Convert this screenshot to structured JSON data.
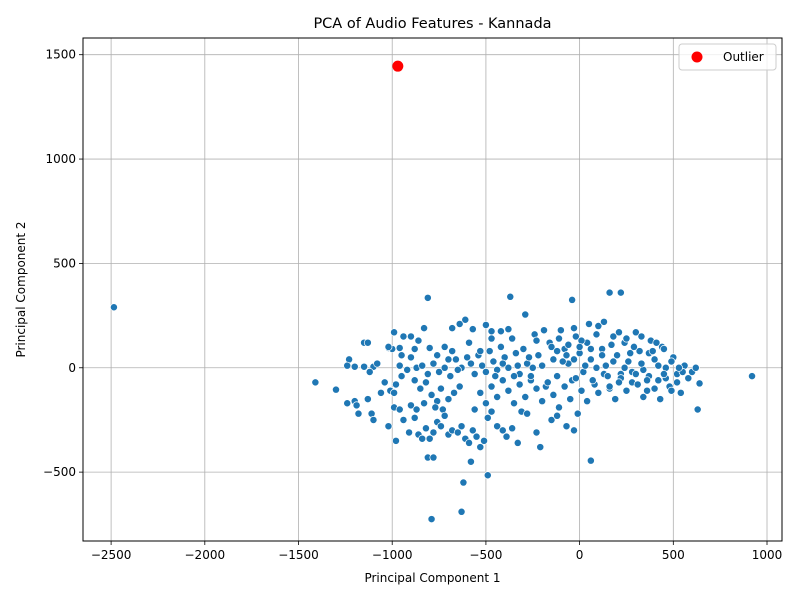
{
  "chart_data": {
    "type": "scatter",
    "title": "PCA of Audio Features - Kannada",
    "xlabel": "Principal Component 1",
    "ylabel": "Principal Component 2",
    "xlim": [
      -2650,
      1080
    ],
    "ylim": [
      -830,
      1580
    ],
    "xticks": [
      -2500,
      -2000,
      -1500,
      -1000,
      -500,
      0,
      500,
      1000
    ],
    "yticks": [
      -500,
      0,
      500,
      1000,
      1500
    ],
    "grid": true,
    "legend": {
      "placement": "top-right",
      "entries": [
        "Outlier"
      ]
    },
    "colors": {
      "points": "#1f77b4",
      "outlier": "#ff0000",
      "point_edge": "#ffffff"
    },
    "series": [
      {
        "role": "points",
        "points": [
          [
            -2485,
            290
          ],
          [
            -1410,
            -70
          ],
          [
            -1300,
            -105
          ],
          [
            920,
            -40
          ],
          [
            -810,
            335
          ],
          [
            -370,
            340
          ],
          [
            -290,
            255
          ],
          [
            -40,
            325
          ],
          [
            160,
            360
          ],
          [
            220,
            360
          ],
          [
            -640,
            210
          ],
          [
            -610,
            230
          ],
          [
            -570,
            185
          ],
          [
            -500,
            205
          ],
          [
            -470,
            175
          ],
          [
            -420,
            175
          ],
          [
            -380,
            185
          ],
          [
            -1230,
            40
          ],
          [
            -1240,
            10
          ],
          [
            -1200,
            5
          ],
          [
            -1150,
            120
          ],
          [
            -1130,
            120
          ],
          [
            -1100,
            5
          ],
          [
            -1080,
            20
          ],
          [
            -1020,
            95
          ],
          [
            -1000,
            90
          ],
          [
            -990,
            170
          ],
          [
            -960,
            95
          ],
          [
            -940,
            150
          ],
          [
            -900,
            150
          ],
          [
            -880,
            90
          ],
          [
            -860,
            130
          ],
          [
            -830,
            190
          ],
          [
            -800,
            95
          ],
          [
            -760,
            60
          ],
          [
            -720,
            100
          ],
          [
            -700,
            40
          ],
          [
            -680,
            190
          ],
          [
            -1040,
            -70
          ],
          [
            -1010,
            -110
          ],
          [
            -980,
            -80
          ],
          [
            -950,
            -40
          ],
          [
            -920,
            -10
          ],
          [
            -880,
            -60
          ],
          [
            -850,
            -100
          ],
          [
            -820,
            -70
          ],
          [
            -790,
            -130
          ],
          [
            -760,
            -160
          ],
          [
            -730,
            -200
          ],
          [
            -700,
            -150
          ],
          [
            -670,
            -120
          ],
          [
            -640,
            -90
          ],
          [
            -1240,
            -170
          ],
          [
            -1200,
            -160
          ],
          [
            -1180,
            -220
          ],
          [
            -1130,
            -150
          ],
          [
            -1110,
            -220
          ],
          [
            -1100,
            -250
          ],
          [
            -1020,
            -280
          ],
          [
            -990,
            -190
          ],
          [
            -980,
            -350
          ],
          [
            -960,
            -200
          ],
          [
            -940,
            -250
          ],
          [
            -900,
            -180
          ],
          [
            -880,
            -240
          ],
          [
            -860,
            -320
          ],
          [
            -840,
            -340
          ],
          [
            -820,
            -290
          ],
          [
            -800,
            -340
          ],
          [
            -780,
            -310
          ],
          [
            -760,
            -260
          ],
          [
            -740,
            -280
          ],
          [
            -720,
            -230
          ],
          [
            -700,
            -320
          ],
          [
            -680,
            -300
          ],
          [
            -650,
            -310
          ],
          [
            -630,
            -280
          ],
          [
            -610,
            -340
          ],
          [
            -590,
            -360
          ],
          [
            -570,
            -300
          ],
          [
            -550,
            -330
          ],
          [
            -530,
            -380
          ],
          [
            -510,
            -350
          ],
          [
            -490,
            -240
          ],
          [
            -470,
            -210
          ],
          [
            -440,
            -280
          ],
          [
            -410,
            -300
          ],
          [
            -390,
            -330
          ],
          [
            -360,
            -290
          ],
          [
            -330,
            -360
          ],
          [
            -310,
            -210
          ],
          [
            -280,
            -220
          ],
          [
            -230,
            -310
          ],
          [
            -210,
            -380
          ],
          [
            -150,
            -250
          ],
          [
            -120,
            -230
          ],
          [
            -70,
            -280
          ],
          [
            -30,
            -300
          ],
          [
            -10,
            -220
          ],
          [
            -810,
            -430
          ],
          [
            -780,
            -430
          ],
          [
            -580,
            -450
          ],
          [
            -620,
            -550
          ],
          [
            -490,
            -515
          ],
          [
            60,
            -445
          ],
          [
            -630,
            -690
          ],
          [
            -790,
            -725
          ],
          [
            -1020,
            100
          ],
          [
            -990,
            -120
          ],
          [
            -960,
            10
          ],
          [
            -900,
            50
          ],
          [
            -870,
            0
          ],
          [
            -840,
            10
          ],
          [
            -810,
            -30
          ],
          [
            -780,
            20
          ],
          [
            -750,
            -20
          ],
          [
            -720,
            0
          ],
          [
            -690,
            -40
          ],
          [
            -660,
            40
          ],
          [
            -630,
            0
          ],
          [
            -600,
            50
          ],
          [
            -580,
            20
          ],
          [
            -560,
            -30
          ],
          [
            -540,
            60
          ],
          [
            -520,
            10
          ],
          [
            -500,
            -20
          ],
          [
            -480,
            80
          ],
          [
            -460,
            30
          ],
          [
            -440,
            -10
          ],
          [
            -420,
            100
          ],
          [
            -400,
            50
          ],
          [
            -380,
            0
          ],
          [
            -360,
            140
          ],
          [
            -340,
            70
          ],
          [
            -320,
            -30
          ],
          [
            -300,
            90
          ],
          [
            -280,
            20
          ],
          [
            -260,
            -60
          ],
          [
            -240,
            160
          ],
          [
            -220,
            60
          ],
          [
            -200,
            10
          ],
          [
            -180,
            -90
          ],
          [
            -160,
            120
          ],
          [
            -140,
            40
          ],
          [
            -120,
            -40
          ],
          [
            -100,
            180
          ],
          [
            -80,
            90
          ],
          [
            -60,
            20
          ],
          [
            -40,
            -60
          ],
          [
            -20,
            150
          ],
          [
            0,
            70
          ],
          [
            20,
            -20
          ],
          [
            40,
            120
          ],
          [
            60,
            40
          ],
          [
            80,
            -80
          ],
          [
            100,
            200
          ],
          [
            120,
            90
          ],
          [
            140,
            10
          ],
          [
            160,
            -100
          ],
          [
            180,
            150
          ],
          [
            200,
            60
          ],
          [
            220,
            -30
          ],
          [
            240,
            120
          ],
          [
            260,
            30
          ],
          [
            280,
            -70
          ],
          [
            300,
            170
          ],
          [
            320,
            80
          ],
          [
            340,
            -10
          ],
          [
            360,
            -110
          ],
          [
            380,
            130
          ],
          [
            400,
            40
          ],
          [
            420,
            -60
          ],
          [
            440,
            100
          ],
          [
            460,
            0
          ],
          [
            480,
            -90
          ],
          [
            500,
            50
          ],
          [
            520,
            -30
          ],
          [
            540,
            -120
          ],
          [
            560,
            10
          ],
          [
            580,
            -50
          ],
          [
            600,
            -20
          ],
          [
            620,
            0
          ],
          [
            640,
            -75
          ],
          [
            630,
            -200
          ],
          [
            -560,
            -200
          ],
          [
            -530,
            -120
          ],
          [
            -500,
            -170
          ],
          [
            -470,
            -90
          ],
          [
            -440,
            -140
          ],
          [
            -410,
            -60
          ],
          [
            -380,
            -110
          ],
          [
            -350,
            -170
          ],
          [
            -320,
            -80
          ],
          [
            -290,
            -140
          ],
          [
            -260,
            -40
          ],
          [
            -230,
            -100
          ],
          [
            -200,
            -160
          ],
          [
            -170,
            -70
          ],
          [
            -140,
            -130
          ],
          [
            -110,
            -190
          ],
          [
            -80,
            -90
          ],
          [
            -50,
            -150
          ],
          [
            -20,
            -50
          ],
          [
            10,
            -110
          ],
          [
            40,
            -160
          ],
          [
            70,
            -60
          ],
          [
            100,
            -120
          ],
          [
            130,
            -30
          ],
          [
            160,
            -90
          ],
          [
            190,
            -150
          ],
          [
            220,
            -50
          ],
          [
            250,
            -110
          ],
          [
            280,
            -20
          ],
          [
            310,
            -80
          ],
          [
            340,
            -140
          ],
          [
            370,
            -40
          ],
          [
            400,
            -100
          ],
          [
            430,
            -150
          ],
          [
            460,
            -50
          ],
          [
            490,
            -110
          ],
          [
            520,
            -70
          ],
          [
            550,
            -20
          ],
          [
            -230,
            130
          ],
          [
            -190,
            180
          ],
          [
            -150,
            100
          ],
          [
            -110,
            140
          ],
          [
            -70,
            60
          ],
          [
            -30,
            190
          ],
          [
            10,
            130
          ],
          [
            50,
            210
          ],
          [
            90,
            160
          ],
          [
            130,
            220
          ],
          [
            170,
            110
          ],
          [
            210,
            170
          ],
          [
            250,
            140
          ],
          [
            290,
            100
          ],
          [
            330,
            150
          ],
          [
            370,
            70
          ],
          [
            410,
            120
          ],
          [
            450,
            90
          ],
          [
            490,
            30
          ],
          [
            530,
            0
          ],
          [
            -120,
            80
          ],
          [
            -90,
            30
          ],
          [
            -60,
            110
          ],
          [
            -30,
            40
          ],
          [
            0,
            100
          ],
          [
            30,
            10
          ],
          [
            60,
            90
          ],
          [
            90,
            0
          ],
          [
            120,
            60
          ],
          [
            150,
            -40
          ],
          [
            180,
            30
          ],
          [
            210,
            -70
          ],
          [
            240,
            0
          ],
          [
            270,
            70
          ],
          [
            300,
            -30
          ],
          [
            330,
            20
          ],
          [
            360,
            -60
          ],
          [
            390,
            80
          ],
          [
            420,
            10
          ],
          [
            450,
            -30
          ],
          [
            -250,
            0
          ],
          [
            -270,
            50
          ],
          [
            -330,
            10
          ],
          [
            -350,
            -40
          ],
          [
            -410,
            20
          ],
          [
            -450,
            -40
          ],
          [
            -470,
            140
          ],
          [
            -530,
            80
          ],
          [
            -590,
            120
          ],
          [
            -650,
            -10
          ],
          [
            -680,
            80
          ],
          [
            -740,
            -100
          ],
          [
            -770,
            -190
          ],
          [
            -830,
            -170
          ],
          [
            -870,
            -200
          ],
          [
            -910,
            -310
          ],
          [
            -950,
            60
          ],
          [
            -1060,
            -120
          ],
          [
            -1120,
            -20
          ],
          [
            -1150,
            5
          ],
          [
            -1190,
            -180
          ]
        ]
      },
      {
        "role": "outlier",
        "name": "Outlier",
        "points": [
          [
            -970,
            1445
          ]
        ]
      }
    ]
  }
}
